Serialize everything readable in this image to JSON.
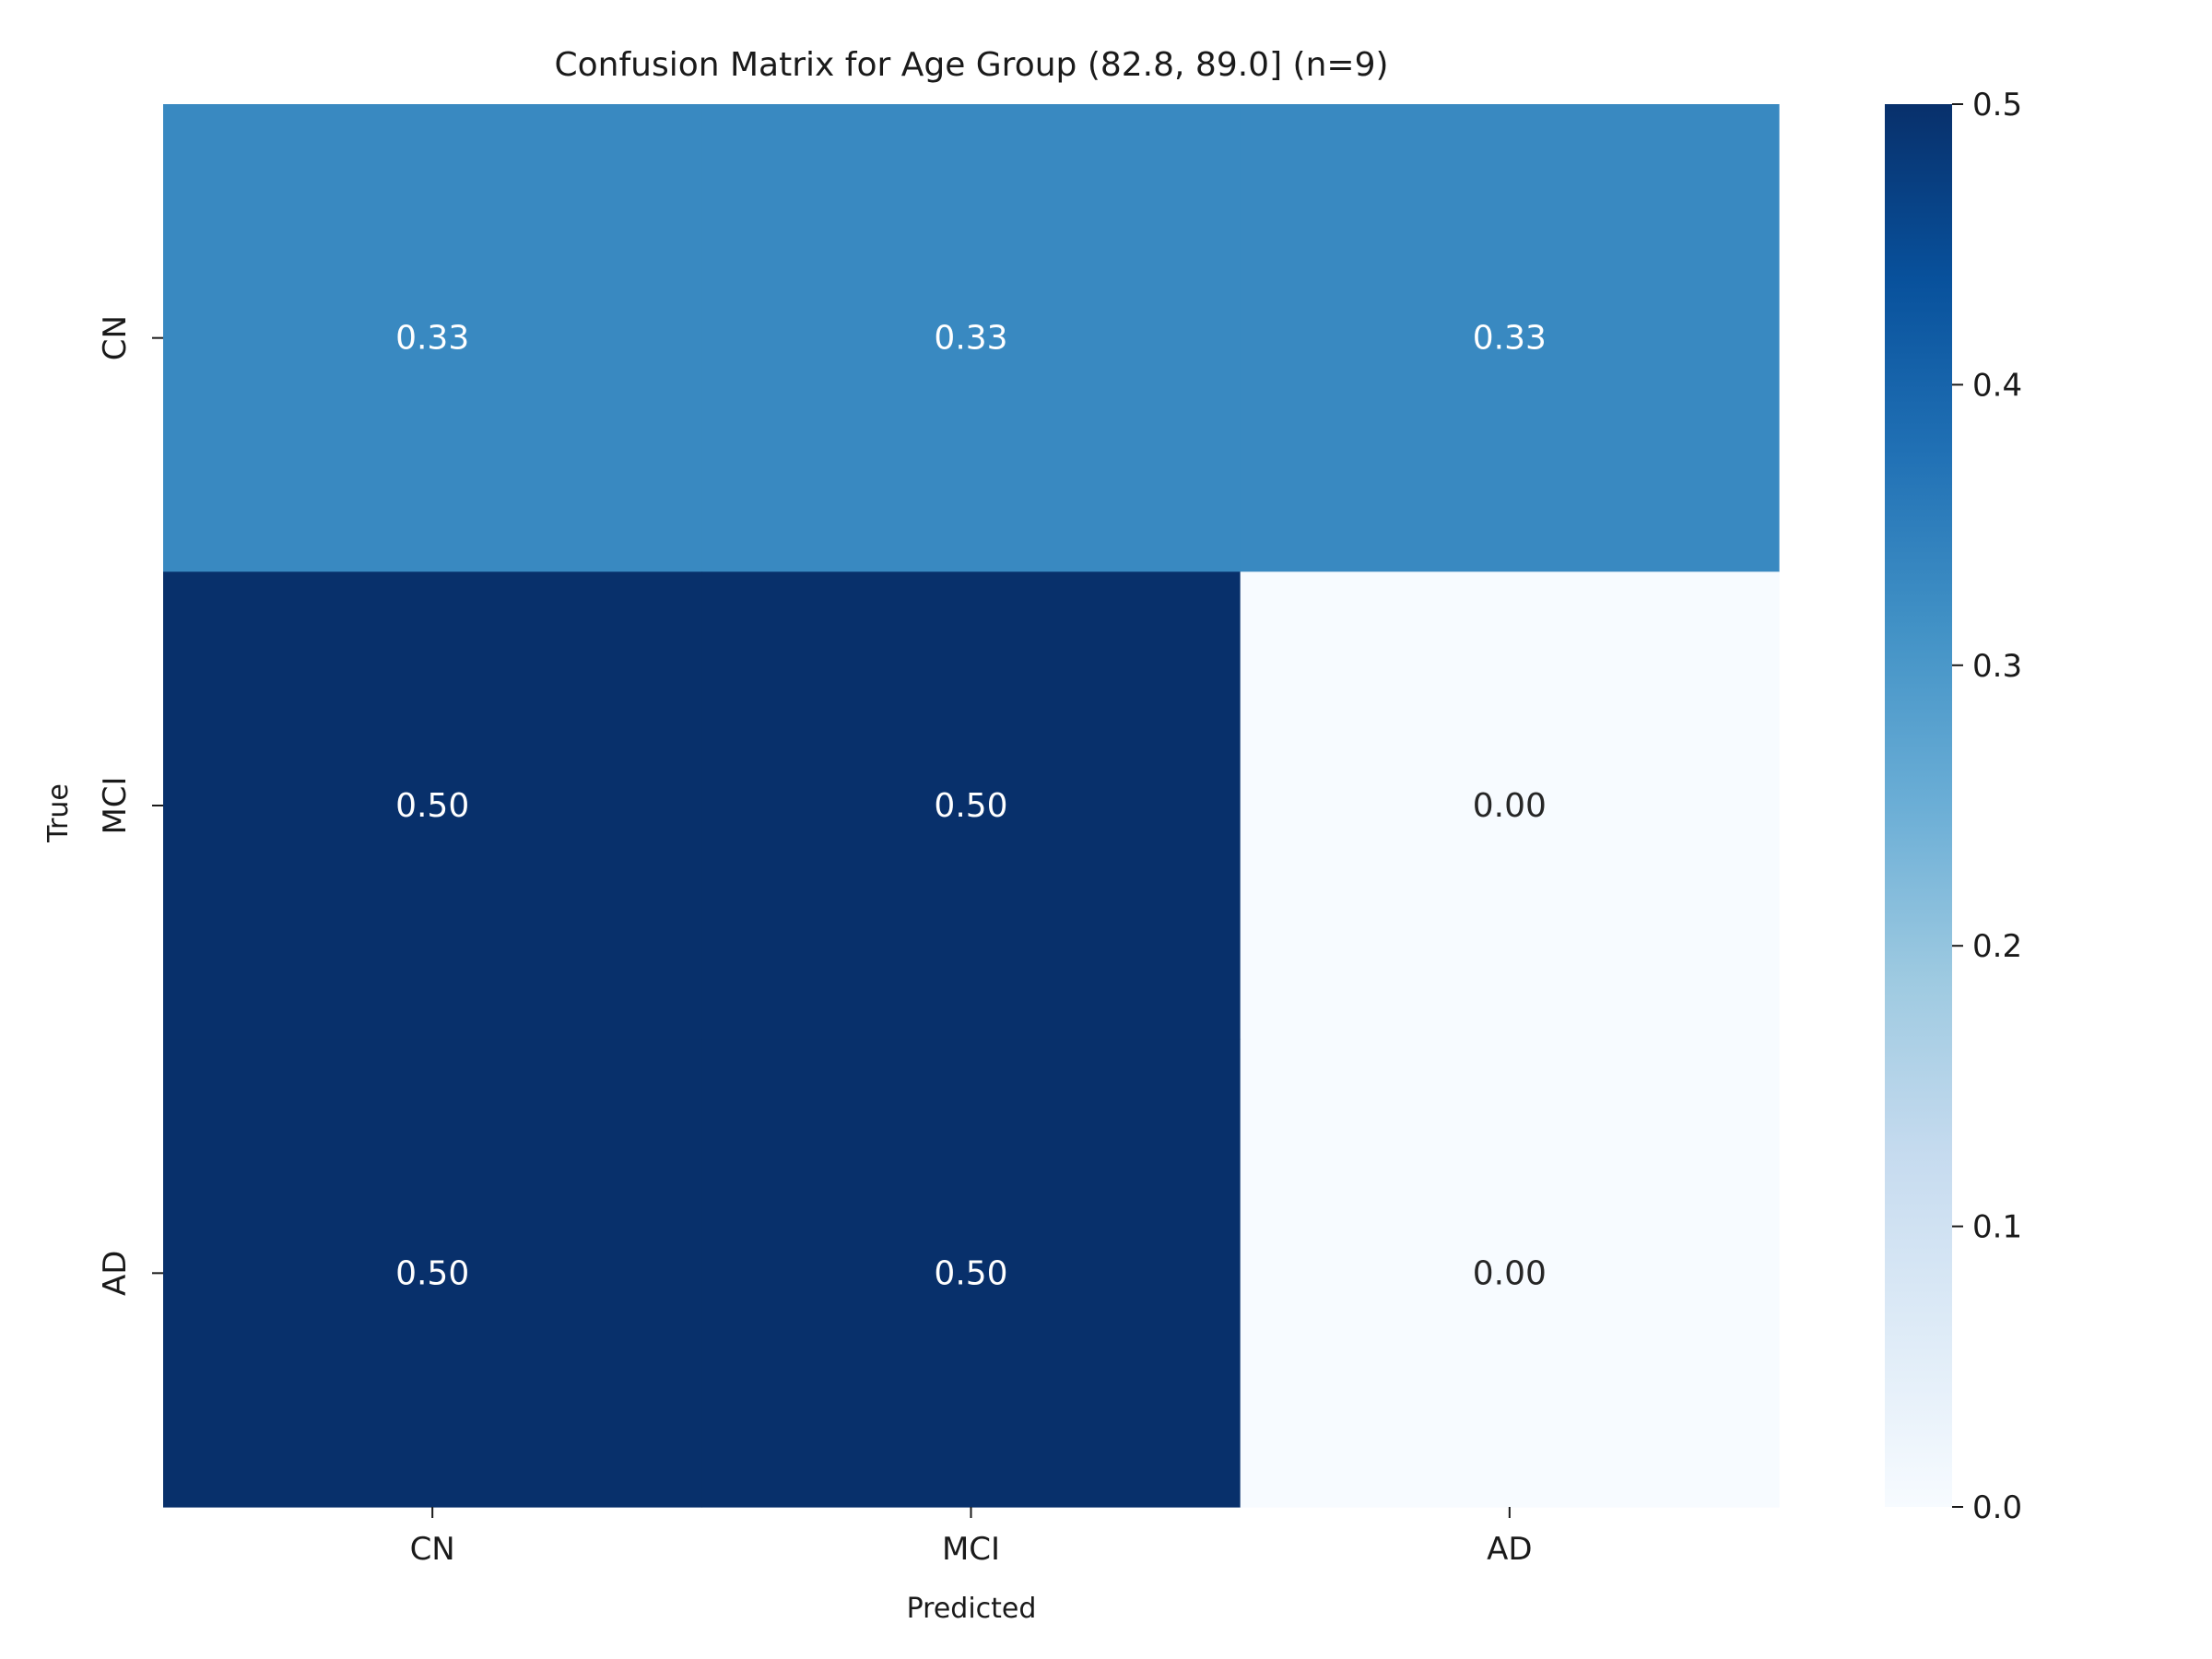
{
  "chart_data": {
    "type": "heatmap",
    "title": "Confusion Matrix for Age Group (82.8, 89.0] (n=9)",
    "xlabel": "Predicted",
    "ylabel": "True",
    "x_categories": [
      "CN",
      "MCI",
      "AD"
    ],
    "y_categories": [
      "CN",
      "MCI",
      "AD"
    ],
    "values": [
      [
        0.33,
        0.33,
        0.33
      ],
      [
        0.5,
        0.5,
        0.0
      ],
      [
        0.5,
        0.5,
        0.0
      ]
    ],
    "cell_labels": [
      [
        "0.33",
        "0.33",
        "0.33"
      ],
      [
        "0.50",
        "0.50",
        "0.00"
      ],
      [
        "0.50",
        "0.50",
        "0.00"
      ]
    ],
    "colormap": "Blues",
    "colorbar": {
      "range": [
        0.0,
        0.5
      ],
      "ticks": [
        0.0,
        0.1,
        0.2,
        0.3,
        0.4,
        0.5
      ],
      "tick_labels": [
        "0.0",
        "0.1",
        "0.2",
        "0.3",
        "0.4",
        "0.5"
      ]
    },
    "colors": {
      "low": "#f7fbff",
      "mid": "#3787c0",
      "high": "#08306b",
      "annotation_light": "#ffffff",
      "annotation_dark": "#262626"
    }
  }
}
